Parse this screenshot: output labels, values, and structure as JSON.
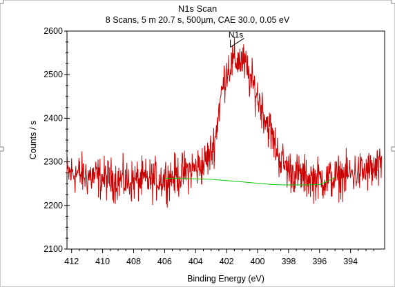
{
  "chart_data": {
    "type": "line",
    "title": "N1s Scan",
    "subtitle": "8 Scans,  5 m 20.7 s,  500µm,  CAE 30.0,  0.05 eV",
    "xlabel": "Binding Energy (eV)",
    "ylabel": "Counts / s",
    "xlim": [
      412.3,
      391.8
    ],
    "ylim": [
      2100,
      2600
    ],
    "x_reversed": true,
    "x_ticks": [
      412,
      410,
      408,
      406,
      404,
      402,
      400,
      398,
      396,
      394
    ],
    "y_ticks": [
      2100,
      2200,
      2300,
      2400,
      2500,
      2600
    ],
    "grid": false,
    "legend": "none",
    "peak_label": {
      "text": "N1s",
      "x": 401.4,
      "y": 2585
    },
    "series": [
      {
        "color": "#cc0000",
        "x": [
          412.3,
          412.0,
          411.0,
          410.0,
          409.0,
          408.5,
          408.0,
          407.0,
          406.0,
          405.0,
          404.5,
          404.0,
          403.5,
          403.0,
          402.7,
          402.5,
          402.2,
          402.0,
          401.8,
          401.5,
          401.2,
          401.0,
          400.8,
          400.5,
          400.2,
          400.0,
          399.7,
          399.5,
          399.2,
          399.0,
          398.7,
          398.5,
          398.2,
          398.0,
          397.5,
          397.0,
          396.5,
          396.0,
          395.5,
          395.0,
          394.5,
          394.0,
          393.5,
          393.0,
          392.5,
          392.0
        ],
        "values": [
          2270,
          2275,
          2268,
          2262,
          2258,
          2255,
          2256,
          2258,
          2262,
          2270,
          2280,
          2285,
          2295,
          2320,
          2360,
          2420,
          2480,
          2510,
          2520,
          2530,
          2535,
          2530,
          2520,
          2490,
          2470,
          2450,
          2425,
          2400,
          2375,
          2350,
          2320,
          2305,
          2290,
          2282,
          2272,
          2265,
          2262,
          2260,
          2260,
          2262,
          2268,
          2272,
          2275,
          2278,
          2280,
          2282
        ],
        "noise_amplitude": 40
      },
      {
        "color": "#00cc00",
        "x": [
          406.0,
          405.0,
          404.0,
          403.0,
          402.0,
          401.0,
          400.0,
          399.0,
          398.0,
          397.0,
          396.0,
          395.5,
          395.0
        ],
        "values": [
          2262,
          2262,
          2261,
          2260,
          2257,
          2254,
          2251,
          2248,
          2247,
          2247,
          2248,
          2255,
          2265
        ]
      }
    ]
  }
}
